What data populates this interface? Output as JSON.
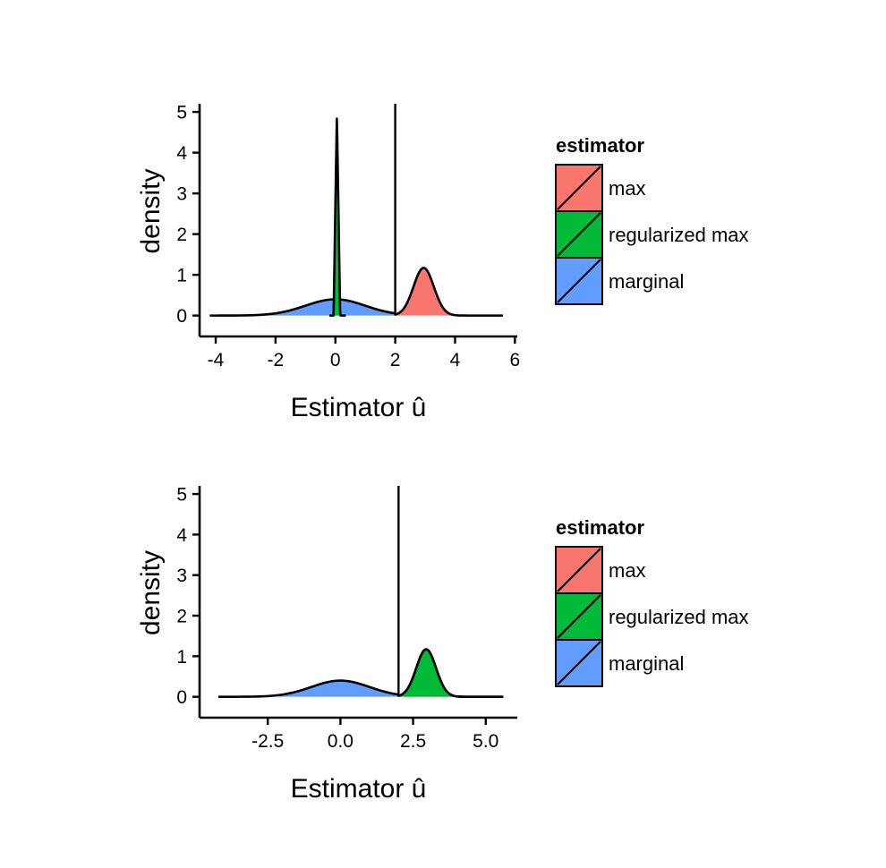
{
  "chart_data": [
    {
      "type": "area",
      "subtype": "density",
      "title": "",
      "xlabel": "Estimator û",
      "ylabel": "density",
      "xlim": [
        -4.3,
        5.9
      ],
      "ylim": [
        -0.25,
        5.2
      ],
      "x_ticks": [
        -4,
        -2,
        0,
        2,
        4,
        6
      ],
      "x_tick_labels": [
        "-4",
        "-2",
        "0",
        "2",
        "4",
        "6"
      ],
      "y_ticks": [
        0,
        1,
        2,
        3,
        4,
        5
      ],
      "y_tick_labels": [
        "0",
        "1",
        "2",
        "3",
        "4",
        "5"
      ],
      "vline": 2,
      "grid": false,
      "legend": {
        "title": "estimator",
        "position": "right",
        "entries": [
          {
            "label": "max",
            "color": "#F8766D"
          },
          {
            "label": "regularized max",
            "color": "#00BA38"
          },
          {
            "label": "marginal",
            "color": "#619CFF"
          }
        ]
      },
      "series": [
        {
          "name": "marginal",
          "color": "#619CFF",
          "kind": "normal",
          "mean": 0,
          "sd": 1,
          "from": -4.2,
          "to": 2.0
        },
        {
          "name": "regularized max",
          "color": "#00BA38",
          "kind": "spike",
          "center": 0.05,
          "peak": 4.95,
          "width": 0.11,
          "from": -0.2,
          "to": 0.35
        },
        {
          "name": "max",
          "color": "#F8766D",
          "kind": "normal",
          "mean": 2.95,
          "sd": 0.34,
          "from": 2.0,
          "to": 5.6,
          "peak": 1.17
        }
      ]
    },
    {
      "type": "area",
      "subtype": "density",
      "title": "",
      "xlabel": "Estimator û",
      "ylabel": "density",
      "xlim": [
        -4.6,
        5.9
      ],
      "ylim": [
        -0.25,
        5.2
      ],
      "x_ticks": [
        -2.5,
        0,
        2.5,
        5
      ],
      "x_tick_labels": [
        "-2.5",
        "0.0",
        "2.5",
        "5.0"
      ],
      "y_ticks": [
        0,
        1,
        2,
        3,
        4,
        5
      ],
      "y_tick_labels": [
        "0",
        "1",
        "2",
        "3",
        "4",
        "5"
      ],
      "vline": 2,
      "grid": false,
      "legend": {
        "title": "estimator",
        "position": "right",
        "entries": [
          {
            "label": "max",
            "color": "#F8766D"
          },
          {
            "label": "regularized max",
            "color": "#00BA38"
          },
          {
            "label": "marginal",
            "color": "#619CFF"
          }
        ]
      },
      "series": [
        {
          "name": "marginal",
          "color": "#619CFF",
          "kind": "normal",
          "mean": 0,
          "sd": 1,
          "from": -4.2,
          "to": 2.0
        },
        {
          "name": "max",
          "color": "#F8766D",
          "kind": "normal",
          "mean": 2.95,
          "sd": 0.34,
          "from": 2.0,
          "to": 5.6,
          "peak": 1.17
        },
        {
          "name": "regularized max",
          "color": "#00BA38",
          "kind": "normal",
          "mean": 2.95,
          "sd": 0.34,
          "from": 2.0,
          "to": 5.6,
          "peak": 1.17
        }
      ]
    }
  ]
}
